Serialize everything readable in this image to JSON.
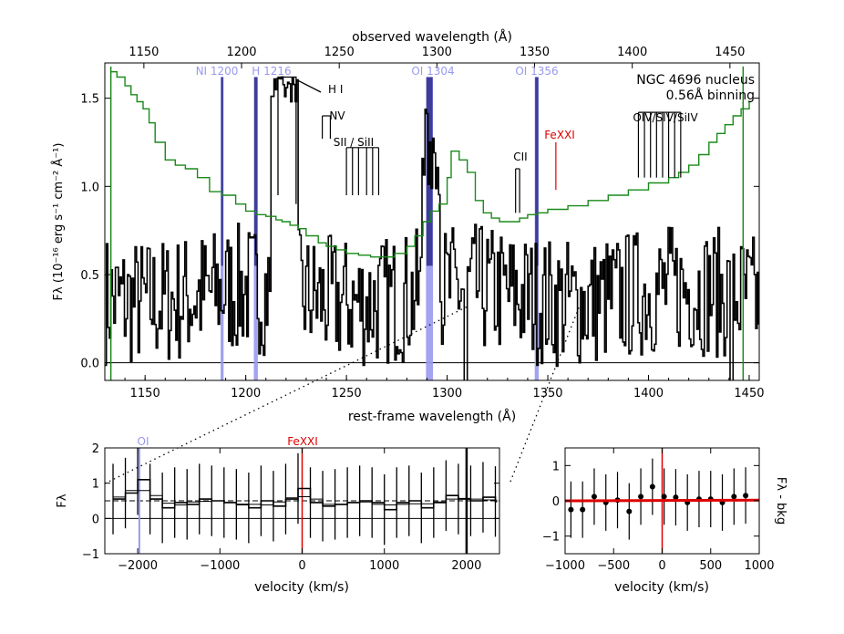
{
  "colors": {
    "spectrum": "#000000",
    "model": "#1a8a1a",
    "airglow": "#9999ee",
    "airglow_dark": "#2b2b8a",
    "feature": "#dd0000",
    "fit": "#dd0000"
  },
  "chart_data": [
    {
      "id": "main",
      "type": "line",
      "title": "NGC 4696 nucleus",
      "subtitle": "0.56Å binning",
      "xlabel": "rest-frame wavelength (Å)",
      "x2label": "observed wavelength (Å)",
      "ylabel": "Fλ (10⁻¹⁶ erg s⁻¹ cm⁻² Å⁻¹)",
      "xlim": [
        1130,
        1455
      ],
      "ylim": [
        -0.1,
        1.7
      ],
      "x2lim": [
        1130,
        1465
      ],
      "xticks": [
        1150,
        1200,
        1250,
        1300,
        1350,
        1400,
        1450
      ],
      "x2ticks": [
        1150,
        1200,
        1250,
        1300,
        1350,
        1400,
        1450
      ],
      "yticks": [
        0.0,
        0.5,
        1.0,
        1.5
      ],
      "series": [
        {
          "name": "observed spectrum",
          "style": "step",
          "color": "#000000"
        },
        {
          "name": "stellar template",
          "style": "step",
          "color": "#1a8a1a",
          "x": [
            1133,
            1136,
            1140,
            1143,
            1146,
            1149,
            1152,
            1155,
            1160,
            1165,
            1170,
            1176,
            1182,
            1188,
            1195,
            1200,
            1205,
            1210,
            1215,
            1218,
            1222,
            1226,
            1230,
            1236,
            1240,
            1245,
            1250,
            1256,
            1262,
            1268,
            1274,
            1280,
            1284,
            1288,
            1292,
            1296,
            1300,
            1302,
            1306,
            1310,
            1314,
            1318,
            1322,
            1326,
            1330,
            1336,
            1340,
            1345,
            1350,
            1360,
            1370,
            1380,
            1390,
            1400,
            1410,
            1415,
            1420,
            1425,
            1430,
            1434,
            1438,
            1442,
            1446,
            1450
          ],
          "y": [
            1.65,
            1.62,
            1.57,
            1.52,
            1.48,
            1.44,
            1.36,
            1.25,
            1.15,
            1.12,
            1.1,
            1.05,
            0.97,
            0.95,
            0.9,
            0.86,
            0.84,
            0.83,
            0.81,
            0.8,
            0.78,
            0.76,
            0.72,
            0.68,
            0.66,
            0.64,
            0.62,
            0.61,
            0.6,
            0.6,
            0.62,
            0.66,
            0.72,
            0.8,
            0.86,
            0.9,
            1.05,
            1.2,
            1.15,
            1.08,
            0.92,
            0.85,
            0.82,
            0.8,
            0.8,
            0.82,
            0.84,
            0.85,
            0.87,
            0.89,
            0.92,
            0.95,
            0.98,
            1.02,
            1.05,
            1.08,
            1.12,
            1.18,
            1.25,
            1.3,
            1.35,
            1.4,
            1.44,
            1.48
          ]
        }
      ],
      "airglow_bands": [
        {
          "label": "NI 1200",
          "x0": 1187.5,
          "x1": 1189,
          "color": "#9999ee"
        },
        {
          "label": "H 1216",
          "x0": 1204,
          "x1": 1206,
          "color": "#9999ee"
        },
        {
          "label": "OI 1304",
          "x0": 1289.5,
          "x1": 1293,
          "color": "#9999ee"
        },
        {
          "label": "OI 1356",
          "x0": 1343.5,
          "x1": 1345.5,
          "color": "#9999ee"
        }
      ],
      "line_markers": [
        {
          "label": "H I",
          "x": 1224,
          "color": "#000000"
        },
        {
          "label": "NV",
          "x": 1240,
          "color": "#000000"
        },
        {
          "label": "SII / SiII",
          "x": 1258,
          "color": "#000000"
        },
        {
          "label": "CII",
          "x": 1335,
          "color": "#000000"
        },
        {
          "label": "FeXXI",
          "x": 1354,
          "color": "#dd0000"
        },
        {
          "label": "OIV/SIV/SiIV",
          "x": 1405,
          "color": "#000000"
        }
      ]
    },
    {
      "id": "velocity",
      "type": "line",
      "xlabel": "velocity (km/s)",
      "ylabel": "Fλ",
      "xlim": [
        -2400,
        2400
      ],
      "ylim": [
        -1,
        2
      ],
      "xticks": [
        -2000,
        -1000,
        0,
        1000,
        2000
      ],
      "yticks": [
        -1,
        0,
        1,
        2
      ],
      "continuum": 0.5,
      "markers": [
        {
          "label": "OI",
          "x": -1980,
          "color": "#9999ee"
        },
        {
          "label": "FeXXI",
          "x": 0,
          "color": "#dd0000"
        }
      ],
      "x": [
        -2300,
        -2150,
        -2000,
        -1850,
        -1700,
        -1550,
        -1400,
        -1250,
        -1100,
        -950,
        -800,
        -650,
        -500,
        -350,
        -200,
        -50,
        100,
        250,
        400,
        550,
        700,
        850,
        1000,
        1150,
        1300,
        1450,
        1600,
        1750,
        1900,
        2050,
        2200,
        2350
      ],
      "y": [
        0.55,
        0.72,
        1.1,
        0.55,
        0.3,
        0.45,
        0.4,
        0.55,
        0.5,
        0.45,
        0.4,
        0.3,
        0.5,
        0.35,
        0.55,
        0.85,
        0.45,
        0.35,
        0.4,
        0.45,
        0.5,
        0.45,
        0.25,
        0.45,
        0.5,
        0.3,
        0.45,
        0.65,
        0.55,
        0.5,
        0.6,
        0.48
      ],
      "err": 1.0
    },
    {
      "id": "residual",
      "type": "scatter",
      "xlabel": "velocity (km/s)",
      "ylabel": "Fλ - bkg",
      "xlim": [
        -1000,
        1000
      ],
      "ylim": [
        -1.5,
        1.5
      ],
      "xticks": [
        -1000,
        -500,
        0,
        500,
        1000
      ],
      "yticks": [
        -1,
        0,
        1
      ],
      "marker_x": 0,
      "fit": 0.0,
      "x": [
        -940,
        -820,
        -700,
        -580,
        -460,
        -340,
        -220,
        -100,
        20,
        140,
        260,
        380,
        500,
        620,
        740,
        860
      ],
      "y": [
        -0.25,
        -0.25,
        0.12,
        -0.05,
        0.02,
        -0.3,
        0.12,
        0.4,
        0.12,
        0.1,
        -0.05,
        0.05,
        0.05,
        -0.05,
        0.12,
        0.15
      ],
      "err": 0.8
    }
  ]
}
